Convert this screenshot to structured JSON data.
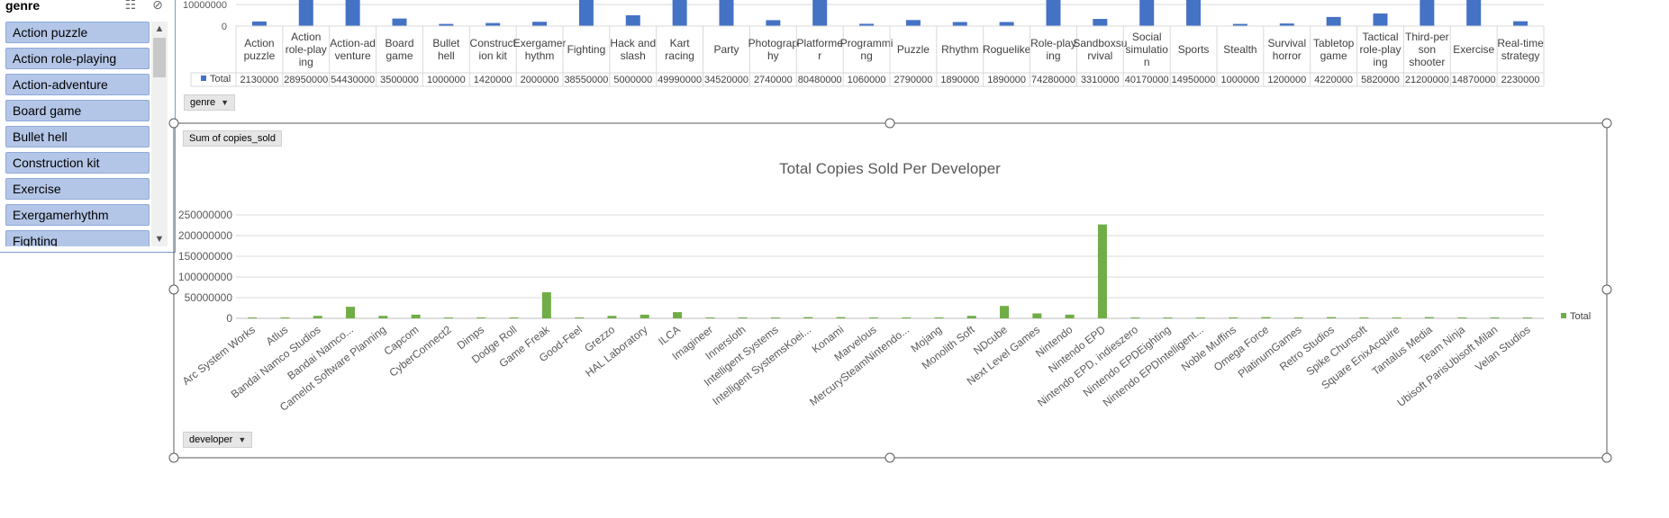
{
  "slicer": {
    "title": "genre",
    "multiselect_icon": "multi-select-icon",
    "clear_filter_icon": "clear-filter-icon",
    "items": [
      "Action puzzle",
      "Action role-playing",
      "Action-adventure",
      "Board game",
      "Bullet hell",
      "Construction kit",
      "Exercise",
      "Exergamerhythm",
      "Fighting"
    ],
    "scroll_up": "^",
    "scroll_down": "v"
  },
  "top_chart": {
    "y_tick_label": "10000000",
    "y_zero_label": "0",
    "legend_label": "Total",
    "field_button": "genre",
    "bar_color": "#4472c4",
    "categories": [
      "Action puzzle",
      "Action role-playing",
      "Action-adventure",
      "Board game",
      "Bullet hell",
      "Construction kit",
      "Exergamerhythm",
      "Fighting",
      "Hack and slash",
      "Kart racing",
      "Party",
      "Photography",
      "Platformer",
      "Programming",
      "Puzzle",
      "Rhythm",
      "Roguelike",
      "Role-playing",
      "Sandboxsurvival",
      "Social simulation",
      "Sports",
      "Stealth",
      "Survival horror",
      "Tabletop game",
      "Tactical role-playing",
      "Third-person shooter",
      "Exercise",
      "Real-time strategy"
    ],
    "values": [
      "2130000",
      "28950000",
      "54430000",
      "3500000",
      "1000000",
      "1420000",
      "2000000",
      "38550000",
      "5000000",
      "49990000",
      "34520000",
      "2740000",
      "80480000",
      "1060000",
      "2790000",
      "1890000",
      "1890000",
      "74280000",
      "3310000",
      "40170000",
      "14950000",
      "1000000",
      "1200000",
      "4220000",
      "5820000",
      "21200000",
      "14870000",
      "2230000"
    ]
  },
  "bottom_chart": {
    "value_field_button": "Sum of copies_sold",
    "axis_field_button": "developer",
    "legend_label": "Total",
    "bar_color": "#70ad47"
  },
  "chart_data": {
    "type": "bar",
    "title": "Total Copies Sold Per Developer",
    "xlabel": "",
    "ylabel": "",
    "ylim": [
      0,
      250000000
    ],
    "yticks": [
      "0",
      "50000000",
      "100000000",
      "150000000",
      "200000000",
      "250000000"
    ],
    "grid": true,
    "legend": "right",
    "categories": [
      "Arc System Works",
      "Atlus",
      "Bandai Namco Studios",
      "Bandai Namco...",
      "Camelot Software Planning",
      "Capcom",
      "CyberConnect2",
      "Dimps",
      "Dodge Roll",
      "Game Freak",
      "Good-Feel",
      "Grezzo",
      "HAL Laboratory",
      "ILCA",
      "Imagineer",
      "Innersloth",
      "Intelligent Systems",
      "Intelligent SystemsKoei...",
      "Konami",
      "Marvelous",
      "MercurySteamNintendo...",
      "Mojang",
      "Monolith Soft",
      "NDcube",
      "Next Level Games",
      "Nintendo",
      "Nintendo EPD",
      "Nintendo EPD, indieszero",
      "Nintendo EPDEighting",
      "Nintendo EPDIntelligent...",
      "Noble Muffins",
      "Omega Force",
      "PlatinumGames",
      "Retro Studios",
      "Spike Chunsoft",
      "Square EnixAcquire",
      "Tantalus Media",
      "Team Ninja",
      "Ubisoft ParisUbisoft Milan",
      "Velan Studios"
    ],
    "series": [
      {
        "name": "Total",
        "values": [
          1000000,
          1000000,
          6000000,
          28000000,
          6000000,
          9000000,
          1000000,
          1000000,
          1000000,
          63000000,
          1000000,
          6000000,
          9000000,
          15000000,
          1000000,
          1000000,
          1000000,
          3000000,
          3000000,
          1000000,
          1000000,
          1000000,
          6000000,
          30000000,
          12000000,
          9000000,
          227000000,
          1000000,
          1000000,
          1000000,
          1000000,
          3000000,
          1000000,
          3000000,
          1000000,
          1000000,
          3000000,
          1000000,
          1000000,
          1000000
        ]
      }
    ]
  }
}
